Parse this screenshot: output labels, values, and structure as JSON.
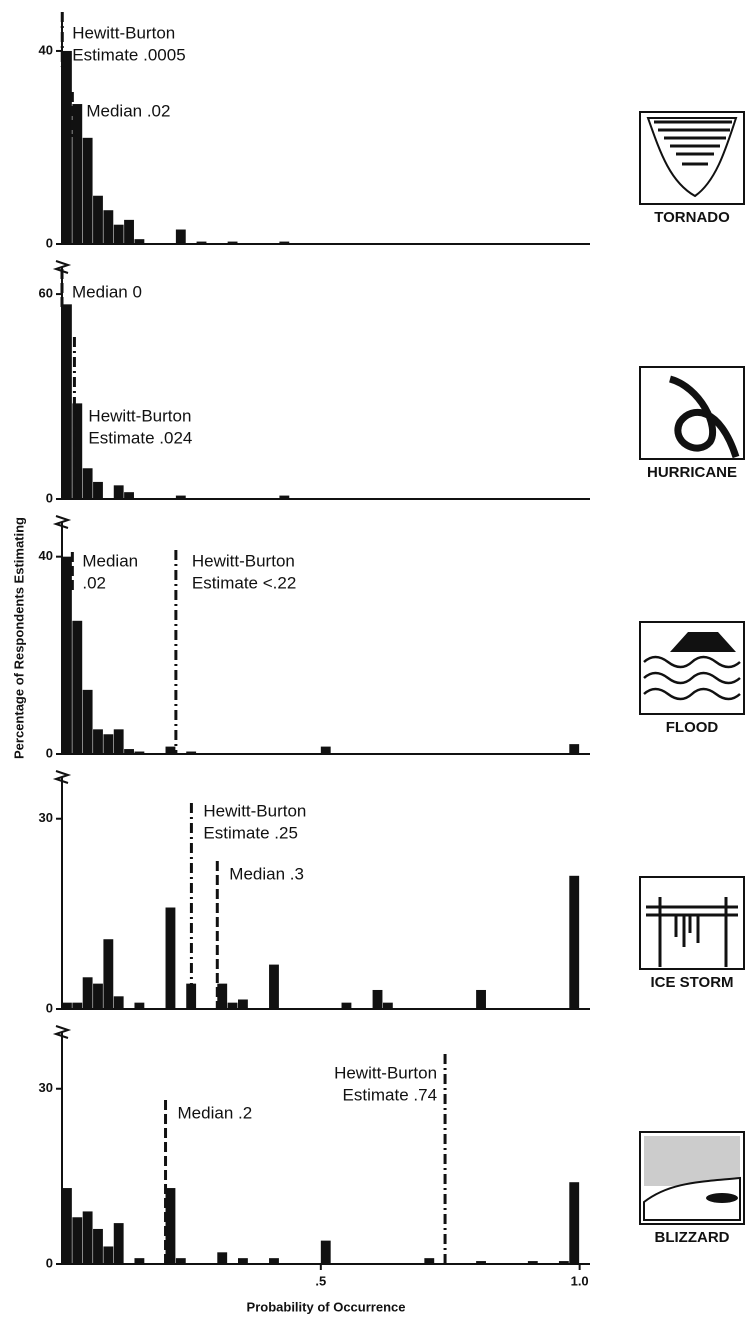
{
  "chart_data": [
    {
      "type": "histogram",
      "hazard": "TORNADO",
      "color": "#111111",
      "xlim": [
        0,
        1.02
      ],
      "ylim": [
        0,
        46
      ],
      "yticks": [
        0,
        40
      ],
      "bins": [
        0,
        0.02,
        0.04,
        0.06,
        0.08,
        0.1,
        0.12,
        0.14,
        0.16,
        0.18,
        0.2,
        0.22,
        0.24,
        0.26,
        0.28,
        0.3,
        0.32,
        0.34,
        0.36,
        0.38,
        0.4,
        0.42,
        0.44,
        0.46,
        0.48,
        0.5,
        0.52,
        0.54,
        0.56,
        0.58,
        0.6,
        0.62,
        0.64,
        0.66,
        0.68,
        0.7,
        0.72,
        0.74,
        0.76,
        0.78,
        0.8,
        0.82,
        0.84,
        0.86,
        0.88,
        0.9,
        0.92,
        0.94,
        0.96,
        0.98,
        1
      ],
      "values": [
        40,
        29,
        22,
        10,
        7,
        4,
        5,
        1,
        0,
        0,
        0,
        3,
        0,
        0.5,
        0,
        0,
        0.5,
        0,
        0,
        0,
        0,
        0.5,
        0,
        0,
        0,
        0,
        0,
        0,
        0,
        0,
        0,
        0,
        0,
        0,
        0,
        0,
        0,
        0,
        0,
        0,
        0,
        0,
        0,
        0,
        0,
        0,
        0,
        0,
        0,
        0
      ],
      "annotations": [
        {
          "text": [
            "Hewitt-Burton",
            "Estimate .0005"
          ],
          "x": 0.0005,
          "style": "dash-dot"
        },
        {
          "text": [
            "Median .02"
          ],
          "x": 0.02,
          "style": "dashed"
        }
      ]
    },
    {
      "type": "histogram",
      "hazard": "HURRICANE",
      "color": "#111111",
      "xlim": [
        0,
        1.02
      ],
      "ylim": [
        0,
        65
      ],
      "yticks": [
        0,
        60
      ],
      "bins": [
        0,
        0.02,
        0.04,
        0.06,
        0.08,
        0.1,
        0.12,
        0.14,
        0.16,
        0.18,
        0.2,
        0.22,
        0.24,
        0.26,
        0.28,
        0.3,
        0.32,
        0.34,
        0.36,
        0.38,
        0.4,
        0.42,
        0.44,
        0.46,
        0.48,
        0.5,
        0.52,
        0.54,
        0.56,
        0.58,
        0.6,
        0.62,
        0.64,
        0.66,
        0.68,
        0.7,
        0.72,
        0.74,
        0.76,
        0.78,
        0.8,
        0.82,
        0.84,
        0.86,
        0.88,
        0.9,
        0.92,
        0.94,
        0.96,
        0.98,
        1
      ],
      "values": [
        57,
        28,
        9,
        5,
        0,
        4,
        2,
        0,
        0,
        0,
        0,
        1,
        0,
        0,
        0,
        0,
        0,
        0,
        0,
        0,
        0,
        1,
        0,
        0,
        0,
        0,
        0,
        0,
        0,
        0,
        0,
        0,
        0,
        0,
        0,
        0,
        0,
        0,
        0,
        0,
        0,
        0,
        0,
        0,
        0,
        0,
        0,
        0,
        0,
        0
      ],
      "annotations": [
        {
          "text": [
            "Median 0"
          ],
          "x": 0,
          "style": "dashed"
        },
        {
          "text": [
            "Hewitt-Burton",
            "Estimate .024"
          ],
          "x": 0.024,
          "style": "dash-dot"
        }
      ]
    },
    {
      "type": "histogram",
      "hazard": "FLOOD",
      "color": "#111111",
      "xlim": [
        0,
        1.02
      ],
      "ylim": [
        0,
        45
      ],
      "yticks": [
        0,
        40
      ],
      "ylabel": "Percentage of Respondents Estimating",
      "bins": [
        0,
        0.02,
        0.04,
        0.06,
        0.08,
        0.1,
        0.12,
        0.14,
        0.16,
        0.18,
        0.2,
        0.22,
        0.24,
        0.26,
        0.28,
        0.3,
        0.32,
        0.34,
        0.36,
        0.38,
        0.4,
        0.42,
        0.44,
        0.46,
        0.48,
        0.5,
        0.52,
        0.54,
        0.56,
        0.58,
        0.6,
        0.62,
        0.64,
        0.66,
        0.68,
        0.7,
        0.72,
        0.74,
        0.76,
        0.78,
        0.8,
        0.82,
        0.84,
        0.86,
        0.88,
        0.9,
        0.92,
        0.94,
        0.96,
        0.98,
        1
      ],
      "values": [
        40,
        27,
        13,
        5,
        4,
        5,
        1,
        0.5,
        0,
        0,
        1.5,
        0,
        0.5,
        0,
        0,
        0,
        0,
        0,
        0,
        0,
        0,
        0,
        0,
        0,
        0,
        1.5,
        0,
        0,
        0,
        0,
        0,
        0,
        0,
        0,
        0,
        0,
        0,
        0,
        0,
        0,
        0,
        0,
        0,
        0,
        0,
        0,
        0,
        0,
        0,
        2
      ],
      "annotations": [
        {
          "text": [
            "Median",
            ".02"
          ],
          "x": 0.02,
          "style": "dashed"
        },
        {
          "text": [
            "Hewitt-Burton",
            "Estimate  <.22"
          ],
          "x": 0.22,
          "style": "dash-dot"
        }
      ]
    },
    {
      "type": "histogram",
      "hazard": "ICE STORM",
      "color": "#111111",
      "xlim": [
        0,
        1.02
      ],
      "ylim": [
        0,
        35
      ],
      "yticks": [
        0,
        30
      ],
      "bins": [
        0,
        0.02,
        0.04,
        0.06,
        0.08,
        0.1,
        0.12,
        0.14,
        0.16,
        0.18,
        0.2,
        0.22,
        0.24,
        0.26,
        0.28,
        0.3,
        0.32,
        0.34,
        0.36,
        0.38,
        0.4,
        0.42,
        0.44,
        0.46,
        0.48,
        0.5,
        0.52,
        0.54,
        0.56,
        0.58,
        0.6,
        0.62,
        0.64,
        0.66,
        0.68,
        0.7,
        0.72,
        0.74,
        0.76,
        0.78,
        0.8,
        0.82,
        0.84,
        0.86,
        0.88,
        0.9,
        0.92,
        0.94,
        0.96,
        0.98,
        1
      ],
      "values": [
        1,
        1,
        5,
        4,
        11,
        2,
        0,
        1,
        0,
        0,
        16,
        0,
        4,
        0,
        0,
        4,
        1,
        1.5,
        0,
        0,
        7,
        0,
        0,
        0,
        0,
        0,
        0,
        1,
        0,
        0,
        3,
        1,
        0,
        0,
        0,
        0,
        0,
        0,
        0,
        0,
        3,
        0,
        0,
        0,
        0,
        0,
        0,
        0,
        0,
        21
      ],
      "annotations": [
        {
          "text": [
            "Hewitt-Burton",
            "Estimate  .25"
          ],
          "x": 0.25,
          "style": "dash-dot"
        },
        {
          "text": [
            "Median  .3"
          ],
          "x": 0.3,
          "style": "dashed"
        }
      ]
    },
    {
      "type": "histogram",
      "hazard": "BLIZZARD",
      "color": "#111111",
      "xlim": [
        0,
        1.02
      ],
      "ylim": [
        0,
        38
      ],
      "yticks": [
        0,
        30
      ],
      "xlabel": "Probability of Occurrence",
      "xticks": [
        {
          "value": 0.5,
          "label": ".5"
        },
        {
          "value": 1,
          "label": "1.0"
        }
      ],
      "bins": [
        0,
        0.02,
        0.04,
        0.06,
        0.08,
        0.1,
        0.12,
        0.14,
        0.16,
        0.18,
        0.2,
        0.22,
        0.24,
        0.26,
        0.28,
        0.3,
        0.32,
        0.34,
        0.36,
        0.38,
        0.4,
        0.42,
        0.44,
        0.46,
        0.48,
        0.5,
        0.52,
        0.54,
        0.56,
        0.58,
        0.6,
        0.62,
        0.64,
        0.66,
        0.68,
        0.7,
        0.72,
        0.74,
        0.76,
        0.78,
        0.8,
        0.82,
        0.84,
        0.86,
        0.88,
        0.9,
        0.92,
        0.94,
        0.96,
        0.98,
        1
      ],
      "values": [
        13,
        8,
        9,
        6,
        3,
        7,
        0,
        1,
        0,
        0,
        13,
        1,
        0,
        0,
        0,
        2,
        0,
        1,
        0,
        0,
        1,
        0,
        0,
        0,
        0,
        4,
        0,
        0,
        0,
        0,
        0,
        0,
        0,
        0,
        0,
        1,
        0,
        0,
        0,
        0,
        0.5,
        0,
        0,
        0,
        0,
        0.5,
        0,
        0,
        0.5,
        14
      ],
      "annotations": [
        {
          "text": [
            "Hewitt-Burton",
            "Estimate  .74"
          ],
          "x": 0.74,
          "style": "dash-dot"
        },
        {
          "text": [
            "Median .2"
          ],
          "x": 0.2,
          "style": "dashed"
        }
      ]
    }
  ]
}
